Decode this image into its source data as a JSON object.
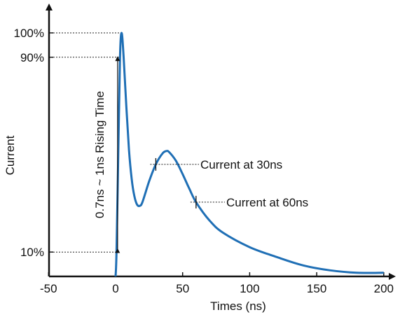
{
  "chart_data": {
    "type": "line",
    "title": "",
    "xlabel": "Times (ns)",
    "ylabel": "Current",
    "xlim": [
      -50,
      200
    ],
    "ylim": [
      0,
      100
    ],
    "x_ticks": [
      -50,
      0,
      50,
      100,
      150,
      200
    ],
    "x_tick_labels": [
      "-50",
      "0",
      "50",
      "100",
      "150",
      "200"
    ],
    "y_ticks": [
      10,
      90,
      100
    ],
    "y_tick_labels": [
      "10%",
      "90%",
      "100%"
    ],
    "grid": false,
    "legend": "none",
    "series": [
      {
        "color": "#1f6fb5",
        "points": [
          [
            0,
            0
          ],
          [
            0.7,
            10
          ],
          [
            2,
            50
          ],
          [
            3.3,
            90
          ],
          [
            4.5,
            100
          ],
          [
            6,
            90
          ],
          [
            8,
            70
          ],
          [
            10,
            52
          ],
          [
            12,
            40
          ],
          [
            14,
            33
          ],
          [
            16,
            29.5
          ],
          [
            18,
            29
          ],
          [
            20,
            30.5
          ],
          [
            25,
            39
          ],
          [
            30,
            46
          ],
          [
            35,
            50.5
          ],
          [
            38,
            51.5
          ],
          [
            40,
            51
          ],
          [
            45,
            47.5
          ],
          [
            50,
            42
          ],
          [
            55,
            36
          ],
          [
            60,
            30.5
          ],
          [
            70,
            23
          ],
          [
            80,
            18
          ],
          [
            100,
            12
          ],
          [
            120,
            8
          ],
          [
            140,
            4.5
          ],
          [
            160,
            2.5
          ],
          [
            180,
            1.5
          ],
          [
            200,
            1.5
          ]
        ]
      }
    ],
    "annotations": [
      {
        "text": "0.7ns ~ 1ns Rising Time",
        "from": [
          1.5,
          10
        ],
        "to": [
          1.5,
          90
        ]
      },
      {
        "text": "Current at 30ns",
        "x": 30,
        "y": 46
      },
      {
        "text": "Current at 60ns",
        "x": 60,
        "y": 30.5
      }
    ]
  }
}
